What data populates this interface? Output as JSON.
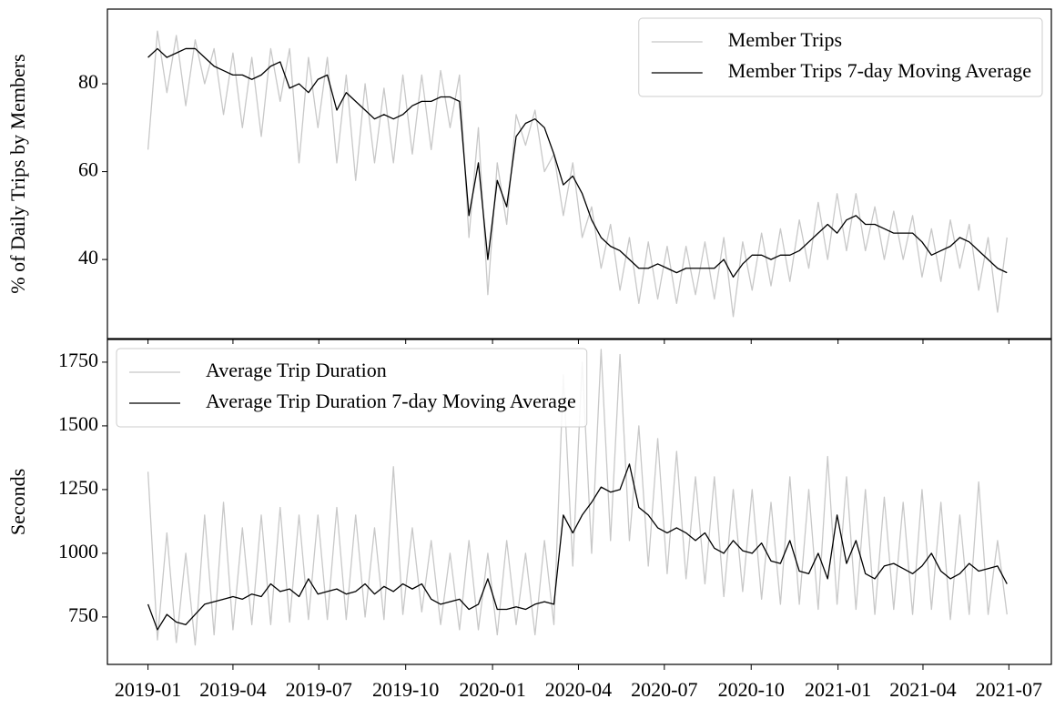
{
  "chart_data": [
    {
      "type": "line",
      "ylabel": "% of Daily Trips by Members",
      "x": [
        "2019-01-01",
        "2019-01-11",
        "2019-01-21",
        "2019-01-31",
        "2019-02-10",
        "2019-02-20",
        "2019-03-02",
        "2019-03-12",
        "2019-03-22",
        "2019-04-01",
        "2019-04-11",
        "2019-04-21",
        "2019-05-01",
        "2019-05-11",
        "2019-05-21",
        "2019-05-31",
        "2019-06-10",
        "2019-06-20",
        "2019-06-30",
        "2019-07-10",
        "2019-07-20",
        "2019-07-30",
        "2019-08-09",
        "2019-08-19",
        "2019-08-29",
        "2019-09-08",
        "2019-09-18",
        "2019-09-28",
        "2019-10-08",
        "2019-10-18",
        "2019-10-28",
        "2019-11-07",
        "2019-11-17",
        "2019-11-27",
        "2019-12-07",
        "2019-12-17",
        "2019-12-27",
        "2020-01-06",
        "2020-01-16",
        "2020-01-26",
        "2020-02-05",
        "2020-02-15",
        "2020-02-25",
        "2020-03-06",
        "2020-03-16",
        "2020-03-26",
        "2020-04-05",
        "2020-04-15",
        "2020-04-25",
        "2020-05-05",
        "2020-05-15",
        "2020-05-25",
        "2020-06-04",
        "2020-06-14",
        "2020-06-24",
        "2020-07-04",
        "2020-07-14",
        "2020-07-24",
        "2020-08-03",
        "2020-08-13",
        "2020-08-23",
        "2020-09-02",
        "2020-09-12",
        "2020-09-22",
        "2020-10-02",
        "2020-10-12",
        "2020-10-22",
        "2020-11-01",
        "2020-11-11",
        "2020-11-21",
        "2020-12-01",
        "2020-12-11",
        "2020-12-21",
        "2020-12-31",
        "2021-01-10",
        "2021-01-20",
        "2021-01-30",
        "2021-02-09",
        "2021-02-19",
        "2021-03-01",
        "2021-03-11",
        "2021-03-21",
        "2021-03-31",
        "2021-04-10",
        "2021-04-20",
        "2021-04-30",
        "2021-05-10",
        "2021-05-20",
        "2021-05-30",
        "2021-06-09",
        "2021-06-19",
        "2021-06-29"
      ],
      "series": [
        {
          "name": "Member Trips",
          "color": "#c8c8c8",
          "values": [
            65,
            92,
            78,
            91,
            75,
            90,
            80,
            88,
            73,
            87,
            70,
            86,
            68,
            88,
            76,
            88,
            62,
            86,
            70,
            86,
            62,
            82,
            58,
            80,
            62,
            79,
            62,
            82,
            64,
            82,
            65,
            83,
            70,
            82,
            45,
            70,
            32,
            62,
            48,
            73,
            66,
            74,
            60,
            64,
            50,
            62,
            45,
            52,
            38,
            48,
            33,
            45,
            30,
            44,
            31,
            43,
            30,
            43,
            32,
            44,
            31,
            45,
            27,
            44,
            33,
            46,
            34,
            47,
            35,
            49,
            38,
            53,
            40,
            55,
            42,
            55,
            42,
            52,
            40,
            51,
            40,
            50,
            36,
            47,
            35,
            49,
            38,
            48,
            33,
            45,
            28,
            45
          ]
        },
        {
          "name": "Member Trips 7-day Moving Average",
          "color": "#000000",
          "values": [
            86,
            88,
            86,
            87,
            88,
            88,
            86,
            84,
            83,
            82,
            82,
            81,
            82,
            84,
            85,
            79,
            80,
            78,
            81,
            82,
            74,
            78,
            76,
            74,
            72,
            73,
            72,
            73,
            75,
            76,
            76,
            77,
            77,
            76,
            50,
            62,
            40,
            58,
            52,
            68,
            71,
            72,
            70,
            64,
            57,
            59,
            55,
            49,
            45,
            43,
            42,
            40,
            38,
            38,
            39,
            38,
            37,
            38,
            38,
            38,
            38,
            40,
            36,
            39,
            41,
            41,
            40,
            41,
            41,
            42,
            44,
            46,
            48,
            46,
            49,
            50,
            48,
            48,
            47,
            46,
            46,
            46,
            44,
            41,
            42,
            43,
            45,
            44,
            42,
            40,
            38,
            37
          ]
        }
      ],
      "xlim": [
        "2018-11-19",
        "2021-08-15"
      ],
      "ylim": [
        22,
        97
      ],
      "yticks": [
        40,
        60,
        80
      ],
      "legend": "upper right"
    },
    {
      "type": "line",
      "ylabel": "Seconds",
      "x": [
        "2019-01-01",
        "2019-01-11",
        "2019-01-21",
        "2019-01-31",
        "2019-02-10",
        "2019-02-20",
        "2019-03-02",
        "2019-03-12",
        "2019-03-22",
        "2019-04-01",
        "2019-04-11",
        "2019-04-21",
        "2019-05-01",
        "2019-05-11",
        "2019-05-21",
        "2019-05-31",
        "2019-06-10",
        "2019-06-20",
        "2019-06-30",
        "2019-07-10",
        "2019-07-20",
        "2019-07-30",
        "2019-08-09",
        "2019-08-19",
        "2019-08-29",
        "2019-09-08",
        "2019-09-18",
        "2019-09-28",
        "2019-10-08",
        "2019-10-18",
        "2019-10-28",
        "2019-11-07",
        "2019-11-17",
        "2019-11-27",
        "2019-12-07",
        "2019-12-17",
        "2019-12-27",
        "2020-01-06",
        "2020-01-16",
        "2020-01-26",
        "2020-02-05",
        "2020-02-15",
        "2020-02-25",
        "2020-03-06",
        "2020-03-16",
        "2020-03-26",
        "2020-04-05",
        "2020-04-15",
        "2020-04-25",
        "2020-05-05",
        "2020-05-15",
        "2020-05-25",
        "2020-06-04",
        "2020-06-14",
        "2020-06-24",
        "2020-07-04",
        "2020-07-14",
        "2020-07-24",
        "2020-08-03",
        "2020-08-13",
        "2020-08-23",
        "2020-09-02",
        "2020-09-12",
        "2020-09-22",
        "2020-10-02",
        "2020-10-12",
        "2020-10-22",
        "2020-11-01",
        "2020-11-11",
        "2020-11-21",
        "2020-12-01",
        "2020-12-11",
        "2020-12-21",
        "2020-12-31",
        "2021-01-10",
        "2021-01-20",
        "2021-01-30",
        "2021-02-09",
        "2021-02-19",
        "2021-03-01",
        "2021-03-11",
        "2021-03-21",
        "2021-03-31",
        "2021-04-10",
        "2021-04-20",
        "2021-04-30",
        "2021-05-10",
        "2021-05-20",
        "2021-05-30",
        "2021-06-09",
        "2021-06-19",
        "2021-06-29"
      ],
      "series": [
        {
          "name": "Average Trip Duration",
          "color": "#c8c8c8",
          "values": [
            1320,
            660,
            1080,
            650,
            1000,
            640,
            1150,
            680,
            1200,
            700,
            1100,
            720,
            1150,
            720,
            1180,
            730,
            1150,
            740,
            1150,
            740,
            1180,
            740,
            1150,
            750,
            1100,
            740,
            1340,
            760,
            1100,
            770,
            1050,
            720,
            1000,
            700,
            1050,
            700,
            1000,
            680,
            1050,
            720,
            1000,
            680,
            1050,
            720,
            1700,
            950,
            1750,
            1000,
            1800,
            1050,
            1780,
            1050,
            1500,
            950,
            1450,
            920,
            1400,
            900,
            1300,
            880,
            1300,
            830,
            1250,
            850,
            1250,
            820,
            1200,
            800,
            1300,
            800,
            1250,
            780,
            1380,
            800,
            1300,
            780,
            1250,
            760,
            1220,
            780,
            1200,
            760,
            1250,
            780,
            1200,
            740,
            1150,
            760,
            1280,
            760,
            1050,
            760
          ]
        },
        {
          "name": "Average Trip Duration 7-day Moving Average",
          "color": "#000000",
          "values": [
            800,
            700,
            760,
            730,
            720,
            760,
            800,
            810,
            820,
            830,
            820,
            840,
            830,
            880,
            850,
            860,
            830,
            900,
            840,
            850,
            860,
            840,
            850,
            880,
            840,
            870,
            850,
            880,
            860,
            880,
            820,
            800,
            810,
            820,
            780,
            800,
            900,
            780,
            780,
            790,
            780,
            800,
            810,
            800,
            1150,
            1080,
            1150,
            1200,
            1260,
            1240,
            1250,
            1350,
            1180,
            1150,
            1100,
            1080,
            1100,
            1080,
            1050,
            1080,
            1020,
            1000,
            1050,
            1010,
            1000,
            1040,
            970,
            960,
            1050,
            930,
            920,
            1000,
            900,
            1150,
            960,
            1050,
            920,
            900,
            950,
            960,
            940,
            920,
            950,
            1000,
            930,
            900,
            920,
            960,
            930,
            940,
            950,
            880
          ]
        }
      ],
      "xlim": [
        "2018-11-19",
        "2021-08-15"
      ],
      "ylim": [
        564,
        1839
      ],
      "yticks": [
        750,
        1000,
        1250,
        1500,
        1750
      ],
      "xticks": [
        "2019-01",
        "2019-04",
        "2019-07",
        "2019-10",
        "2020-01",
        "2020-04",
        "2020-07",
        "2020-10",
        "2021-01",
        "2021-04",
        "2021-07"
      ],
      "legend": "upper left"
    }
  ]
}
